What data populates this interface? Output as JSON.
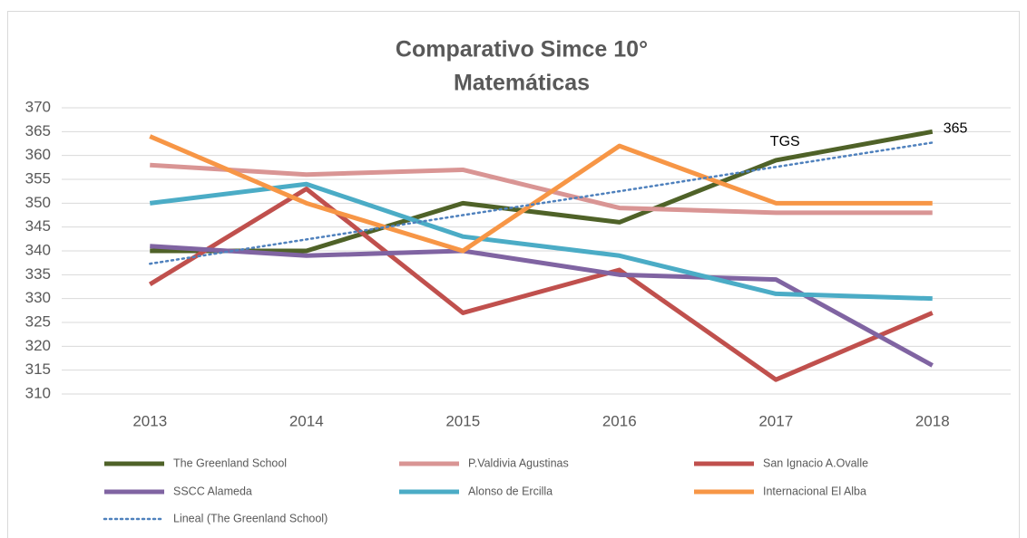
{
  "chart_data": {
    "type": "line",
    "title": "Comparativo Simce 10°",
    "subtitle": "Matemáticas",
    "categories": [
      "2013",
      "2014",
      "2015",
      "2016",
      "2017",
      "2018"
    ],
    "ylim": [
      310,
      370
    ],
    "yticks": [
      310,
      315,
      320,
      325,
      330,
      335,
      340,
      345,
      350,
      355,
      360,
      365,
      370
    ],
    "grid": true,
    "legend": "bottom",
    "annotations": [
      {
        "text": "TGS",
        "series": 0,
        "index": 4
      }
    ],
    "series": [
      {
        "name": "The Greenland School",
        "color": "#4f6228",
        "values": [
          340,
          340,
          350,
          346,
          359,
          365
        ],
        "label_last": true
      },
      {
        "name": "P.Valdivia Agustinas",
        "color": "#d99594",
        "values": [
          358,
          356,
          357,
          349,
          348,
          348
        ]
      },
      {
        "name": "San Ignacio A.Ovalle",
        "color": "#c0504d",
        "values": [
          333,
          353,
          327,
          336,
          313,
          327
        ]
      },
      {
        "name": "SSCC Alameda",
        "color": "#8064a2",
        "values": [
          341,
          339,
          340,
          335,
          334,
          316
        ]
      },
      {
        "name": "Alonso de Ercilla",
        "color": "#4bacc6",
        "values": [
          350,
          354,
          343,
          339,
          331,
          330
        ]
      },
      {
        "name": "Internacional El Alba",
        "color": "#f79646",
        "values": [
          364,
          350,
          340,
          362,
          350,
          350
        ]
      },
      {
        "name": "Lineal (The Greenland School)",
        "color": "#4f81bd",
        "line_style": "dotted",
        "values": [
          337.3,
          342.4,
          347.5,
          352.5,
          357.6,
          362.7
        ]
      }
    ]
  }
}
